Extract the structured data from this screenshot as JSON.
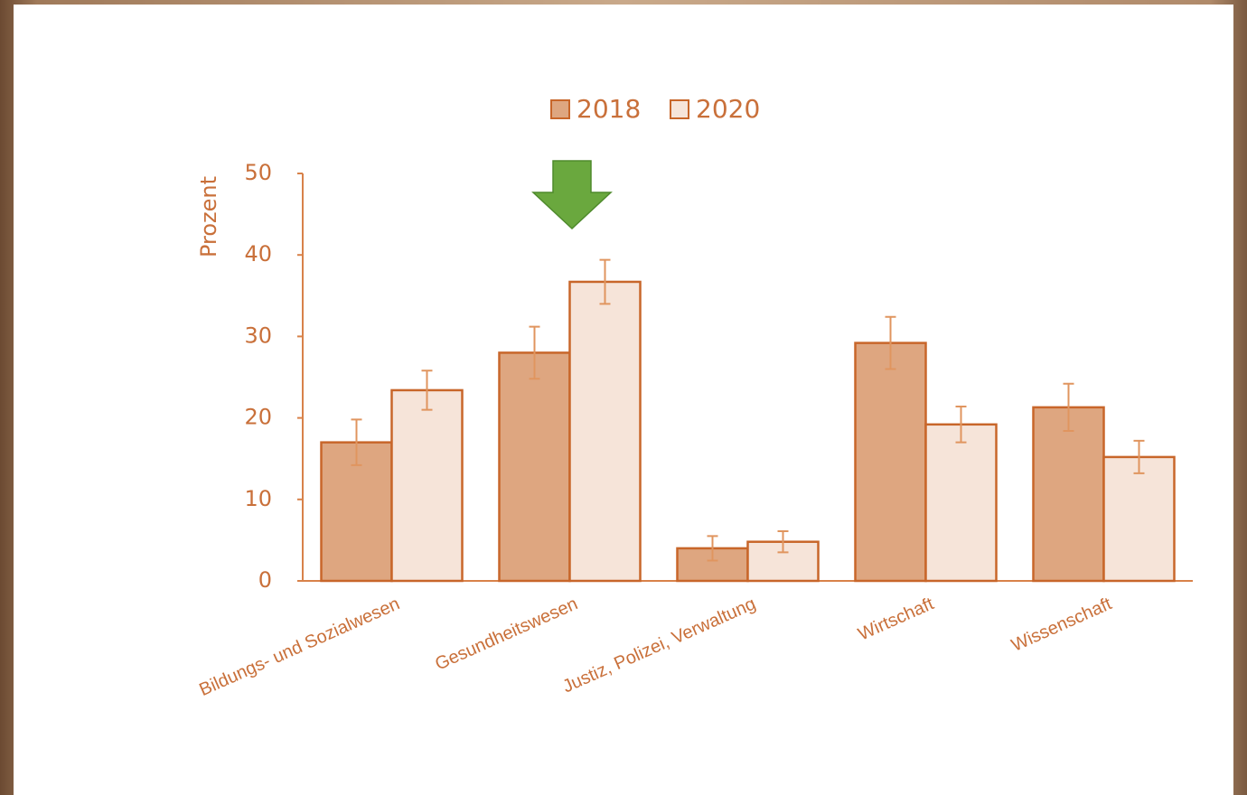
{
  "chart_data": {
    "type": "bar",
    "y_label": "Prozent",
    "categories": [
      "Bildungs- und Sozialwesen",
      "Gesundheitswesen",
      "Justiz, Polizei, Verwaltung",
      "Wirtschaft",
      "Wissenschaft"
    ],
    "series": [
      {
        "name": "2018",
        "color": "#dea680",
        "values": [
          17.0,
          28.0,
          4.0,
          29.2,
          21.3
        ],
        "errors": [
          2.8,
          3.2,
          1.5,
          3.2,
          2.9
        ]
      },
      {
        "name": "2020",
        "color": "#f6e4d9",
        "values": [
          23.4,
          36.7,
          4.8,
          19.2,
          15.2
        ],
        "errors": [
          2.4,
          2.7,
          1.3,
          2.2,
          2.0
        ]
      }
    ],
    "ylim": [
      0,
      50
    ],
    "yticks": [
      0,
      10,
      20,
      30,
      40,
      50
    ],
    "grid": false
  }
}
